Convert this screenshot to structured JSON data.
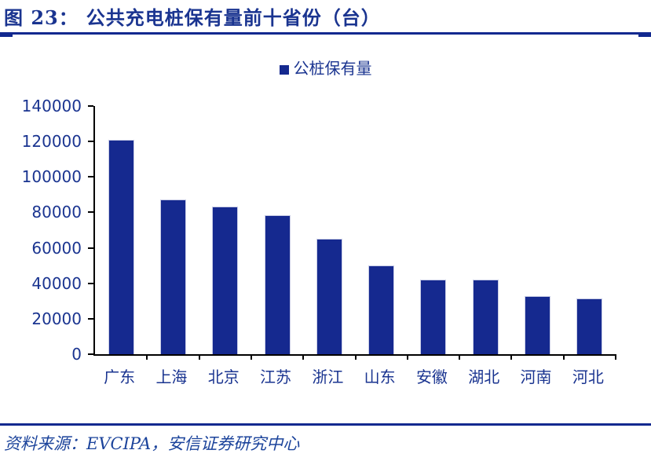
{
  "figure": {
    "label": "图 23：",
    "title": "公共充电桩保有量前十省份（台）"
  },
  "legend": {
    "label": "公桩保有量"
  },
  "chart_data": {
    "type": "bar",
    "title": "公共充电桩保有量前十省份（台）",
    "series_name": "公桩保有量",
    "categories": [
      "广东",
      "上海",
      "北京",
      "江苏",
      "浙江",
      "山东",
      "安徽",
      "湖北",
      "河南",
      "河北"
    ],
    "values": [
      121000,
      87500,
      83500,
      78500,
      65000,
      50000,
      42000,
      42000,
      33000,
      31500
    ],
    "ylim": [
      0,
      140000
    ],
    "yticks": [
      0,
      20000,
      40000,
      60000,
      80000,
      100000,
      120000,
      140000
    ],
    "grid": false,
    "legend_position": "top-center",
    "bar_color": "#15298F"
  },
  "source": {
    "text": "资料来源：EVCIPA，安信证券研究中心"
  },
  "colors": {
    "accent": "#15298F",
    "text": "#1A3490",
    "axis": "#000000",
    "rule": "#12298F",
    "bar_border": "#C9CDE6",
    "source_text": "#1B439B"
  }
}
